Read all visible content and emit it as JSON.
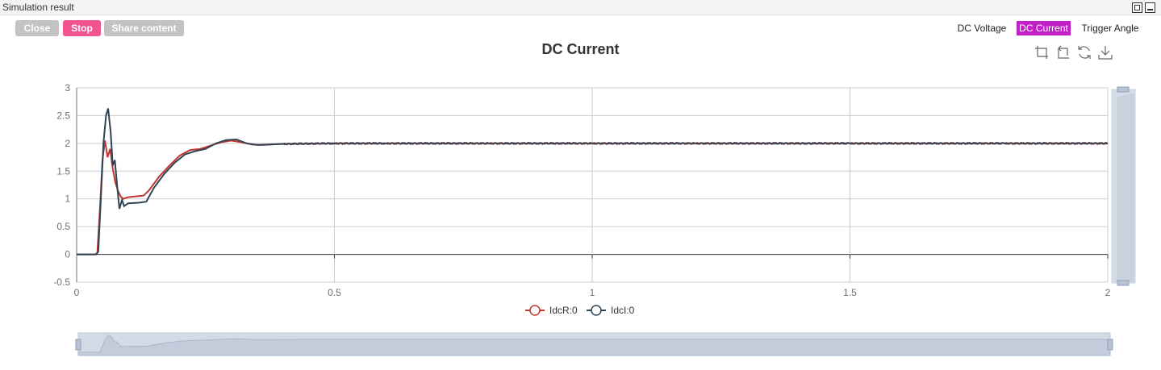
{
  "window": {
    "title": "Simulation result"
  },
  "buttons": {
    "close": "Close",
    "stop": "Stop",
    "share": "Share content"
  },
  "tabs": [
    "DC Voltage",
    "DC Current",
    "Trigger Angle"
  ],
  "active_tab": "DC Current",
  "colors": {
    "active_tab": "#c21fc8",
    "stop_button": "#f2548f",
    "series_r": "#c23531",
    "series_i": "#2f4554"
  },
  "toolbox": [
    "zoom-icon",
    "zoom-reset-icon",
    "restore-icon",
    "download-icon"
  ],
  "chart_data": {
    "type": "line",
    "title": "DC Current",
    "xlabel": "",
    "ylabel": "",
    "xlim": [
      0,
      2
    ],
    "ylim": [
      -0.5,
      3
    ],
    "x_ticks": [
      "0",
      "0.5",
      "1",
      "1.5",
      "2"
    ],
    "y_ticks": [
      "-0.5",
      "0",
      "0.5",
      "1",
      "1.5",
      "2",
      "2.5",
      "3"
    ],
    "grid": true,
    "legend": "bottom-center",
    "series": [
      {
        "name": "IdcR:0",
        "points": [
          [
            0,
            0
          ],
          [
            0.035,
            0
          ],
          [
            0.04,
            0.02
          ],
          [
            0.045,
            0.8
          ],
          [
            0.05,
            1.7
          ],
          [
            0.055,
            2.05
          ],
          [
            0.06,
            1.75
          ],
          [
            0.065,
            1.9
          ],
          [
            0.07,
            1.55
          ],
          [
            0.075,
            1.3
          ],
          [
            0.08,
            1.15
          ],
          [
            0.085,
            1.05
          ],
          [
            0.09,
            1.0
          ],
          [
            0.1,
            1.03
          ],
          [
            0.12,
            1.05
          ],
          [
            0.13,
            1.06
          ],
          [
            0.14,
            1.15
          ],
          [
            0.16,
            1.4
          ],
          [
            0.18,
            1.6
          ],
          [
            0.2,
            1.78
          ],
          [
            0.22,
            1.88
          ],
          [
            0.24,
            1.9
          ],
          [
            0.26,
            1.96
          ],
          [
            0.28,
            2.02
          ],
          [
            0.3,
            2.05
          ],
          [
            0.32,
            2.02
          ],
          [
            0.34,
            1.98
          ],
          [
            0.36,
            1.97
          ],
          [
            0.4,
            1.99
          ],
          [
            0.5,
            2.0
          ],
          [
            0.6,
            2.0
          ],
          [
            0.8,
            2.0
          ],
          [
            1.0,
            2.0
          ],
          [
            1.2,
            2.0
          ],
          [
            1.5,
            2.0
          ],
          [
            1.8,
            2.0
          ],
          [
            2.0,
            2.0
          ]
        ]
      },
      {
        "name": "IdcI:0",
        "points": [
          [
            0,
            0
          ],
          [
            0.038,
            0
          ],
          [
            0.042,
            0.05
          ],
          [
            0.047,
            1.0
          ],
          [
            0.052,
            2.0
          ],
          [
            0.057,
            2.5
          ],
          [
            0.061,
            2.63
          ],
          [
            0.066,
            2.2
          ],
          [
            0.07,
            1.6
          ],
          [
            0.074,
            1.7
          ],
          [
            0.078,
            1.3
          ],
          [
            0.08,
            1.1
          ],
          [
            0.083,
            0.82
          ],
          [
            0.088,
            0.98
          ],
          [
            0.092,
            0.87
          ],
          [
            0.1,
            0.92
          ],
          [
            0.12,
            0.93
          ],
          [
            0.135,
            0.95
          ],
          [
            0.15,
            1.2
          ],
          [
            0.17,
            1.45
          ],
          [
            0.19,
            1.65
          ],
          [
            0.21,
            1.8
          ],
          [
            0.23,
            1.86
          ],
          [
            0.25,
            1.9
          ],
          [
            0.27,
            2.0
          ],
          [
            0.29,
            2.06
          ],
          [
            0.31,
            2.07
          ],
          [
            0.33,
            2.0
          ],
          [
            0.35,
            1.97
          ],
          [
            0.4,
            1.99
          ],
          [
            0.5,
            2.0
          ],
          [
            0.6,
            2.0
          ],
          [
            0.8,
            2.0
          ],
          [
            1.0,
            2.0
          ],
          [
            1.2,
            2.0
          ],
          [
            1.5,
            2.0
          ],
          [
            1.8,
            2.0
          ],
          [
            2.0,
            2.0
          ]
        ]
      }
    ]
  }
}
